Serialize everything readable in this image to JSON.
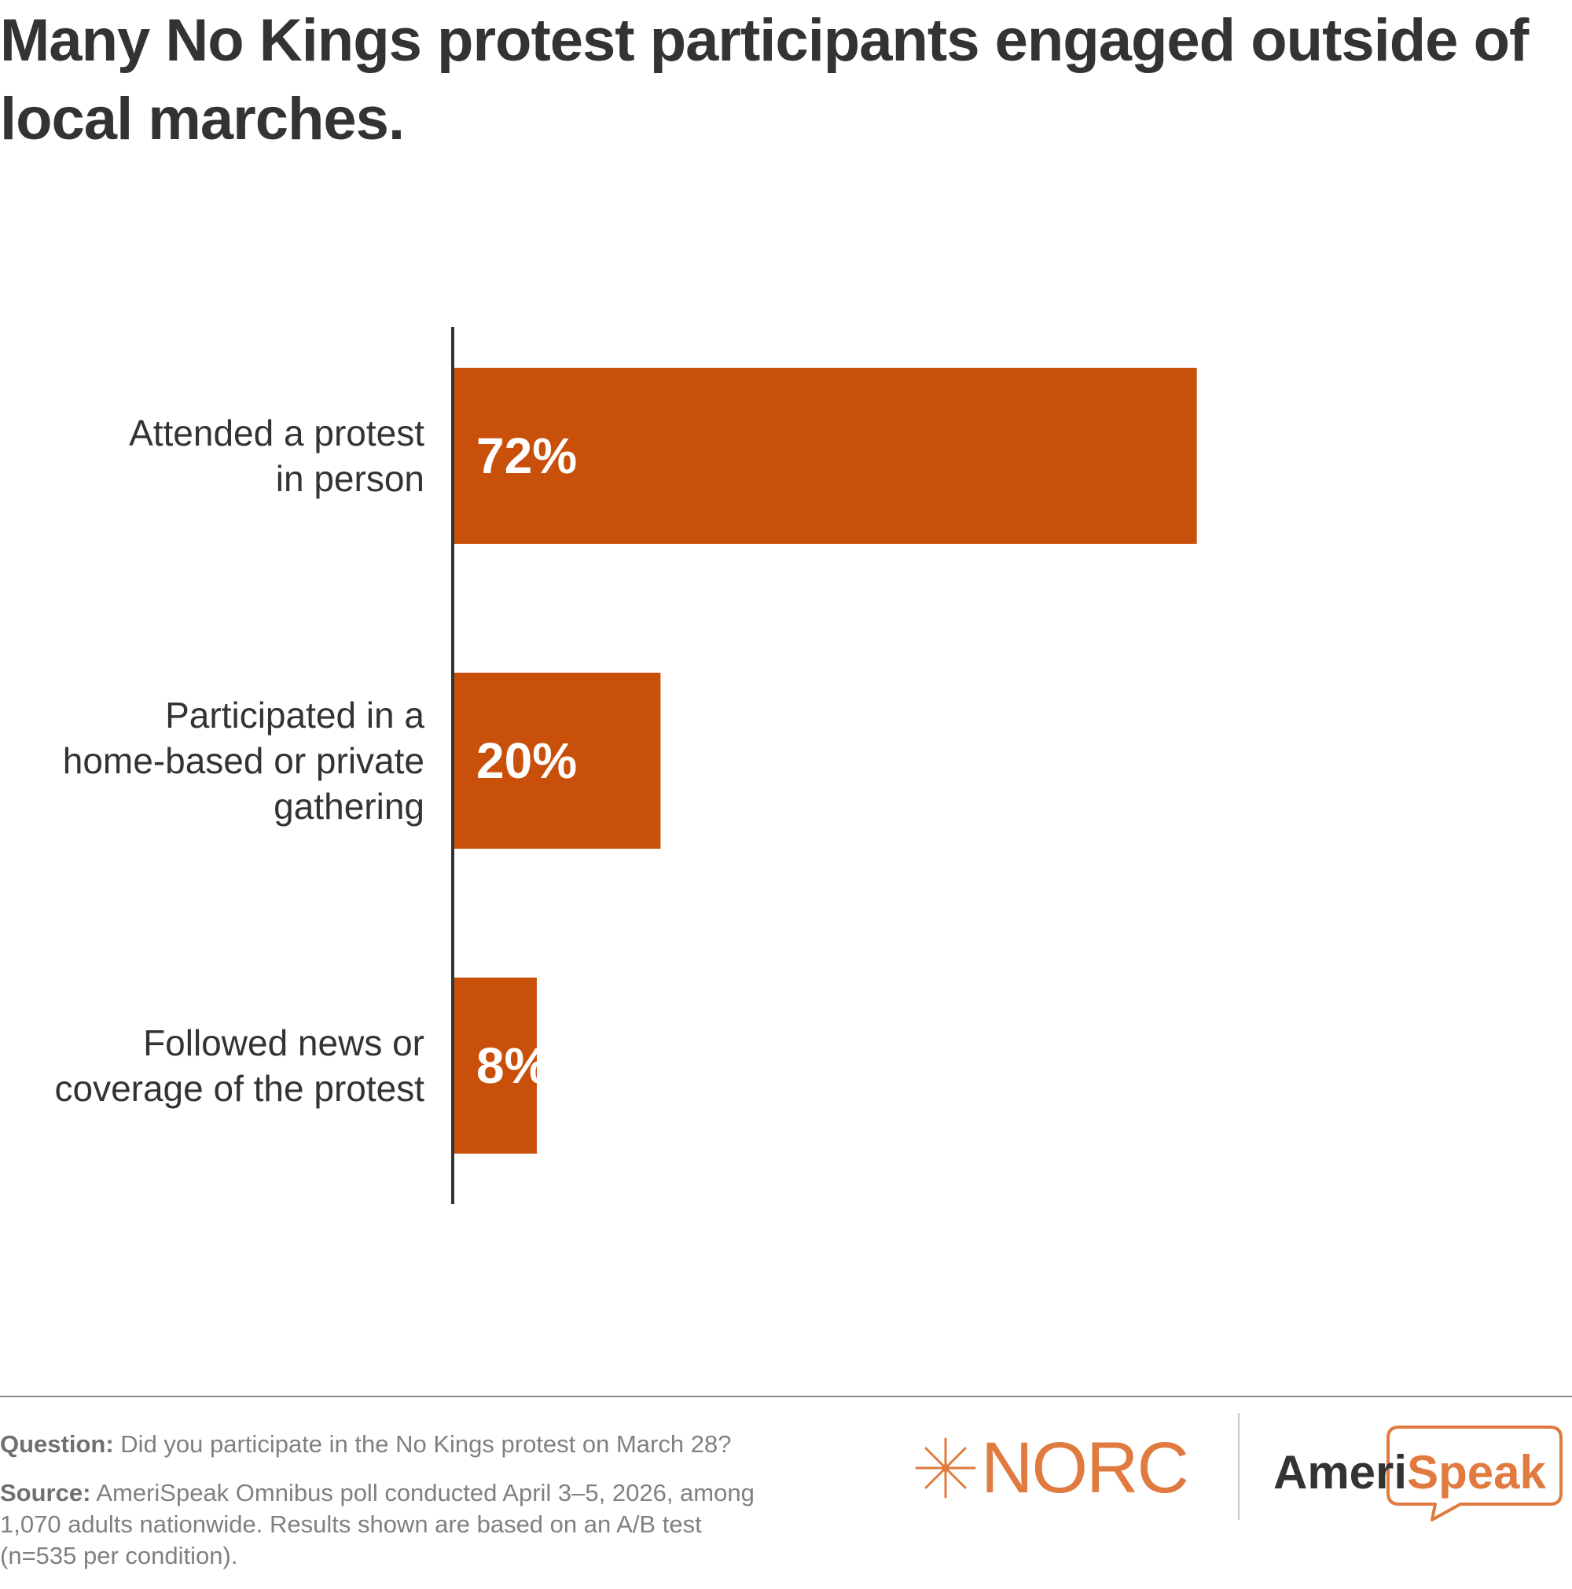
{
  "title": "Many No Kings protest participants engaged outside of local marches.",
  "chart_data": {
    "type": "bar",
    "orientation": "horizontal",
    "categories": [
      "Attended a protest in person",
      "Participated in a home-based or private gathering",
      "Followed news or coverage of the protest"
    ],
    "category_lines": [
      [
        "Attended a protest",
        "in person"
      ],
      [
        "Participated in a",
        "home-based or private",
        "gathering"
      ],
      [
        "Followed news or",
        "coverage of the protest"
      ]
    ],
    "values": [
      72,
      20,
      8
    ],
    "value_labels": [
      "72%",
      "20%",
      "8%"
    ],
    "xlim": [
      0,
      100
    ],
    "grid": false,
    "bar_color": "#c9500a",
    "title": "",
    "xlabel": "",
    "ylabel": ""
  },
  "footer": {
    "question_label": "Question:",
    "question_text": "Did you participate in the No Kings protest on March 28?",
    "source_label": "Source:",
    "source_text": "AmeriSpeak Omnibus poll conducted April 3–5, 2026, among 1,070 adults nationwide. Results shown are based on an A/B test (n=535 per condition)."
  },
  "logos": {
    "norc": "NORC",
    "ameri": "Ameri",
    "speak": "Speak",
    "brand_color": "#e07a3f"
  }
}
